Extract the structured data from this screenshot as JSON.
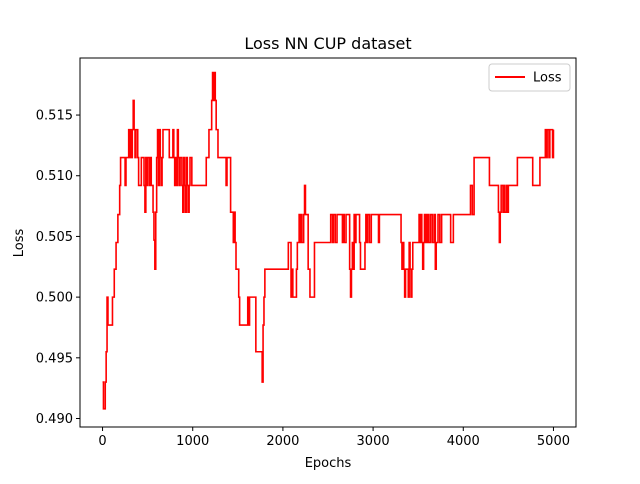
{
  "chart_data": {
    "type": "line",
    "title": "Loss NN CUP dataset",
    "xlabel": "Epochs",
    "ylabel": "Loss",
    "xlim": [
      -250,
      5250
    ],
    "ylim": [
      0.4893,
      0.5197
    ],
    "xticks": [
      0,
      1000,
      2000,
      3000,
      4000,
      5000
    ],
    "xtick_labels": [
      "0",
      "1000",
      "2000",
      "3000",
      "4000",
      "5000"
    ],
    "yticks": [
      0.49,
      0.495,
      0.5,
      0.505,
      0.51,
      0.515
    ],
    "ytick_labels": [
      "0.490",
      "0.495",
      "0.500",
      "0.505",
      "0.510",
      "0.515"
    ],
    "grid": false,
    "legend_position": "top-right",
    "series": [
      {
        "name": "Loss",
        "color": "#ff0000",
        "style": "step",
        "points": [
          [
            0,
            0.493
          ],
          [
            10,
            0.4908
          ],
          [
            25,
            0.4908
          ],
          [
            30,
            0.493
          ],
          [
            40,
            0.4955
          ],
          [
            50,
            0.5
          ],
          [
            60,
            0.4977
          ],
          [
            90,
            0.4977
          ],
          [
            110,
            0.5
          ],
          [
            130,
            0.5023
          ],
          [
            150,
            0.5045
          ],
          [
            170,
            0.5068
          ],
          [
            190,
            0.5092
          ],
          [
            200,
            0.5115
          ],
          [
            240,
            0.5115
          ],
          [
            250,
            0.5092
          ],
          [
            260,
            0.5115
          ],
          [
            280,
            0.5115
          ],
          [
            290,
            0.5138
          ],
          [
            300,
            0.5115
          ],
          [
            310,
            0.5138
          ],
          [
            320,
            0.5115
          ],
          [
            330,
            0.5138
          ],
          [
            340,
            0.5162
          ],
          [
            350,
            0.5138
          ],
          [
            360,
            0.5115
          ],
          [
            370,
            0.5138
          ],
          [
            390,
            0.5115
          ],
          [
            400,
            0.5092
          ],
          [
            420,
            0.5092
          ],
          [
            430,
            0.5115
          ],
          [
            450,
            0.5115
          ],
          [
            460,
            0.5092
          ],
          [
            470,
            0.507
          ],
          [
            480,
            0.5115
          ],
          [
            490,
            0.5092
          ],
          [
            500,
            0.5115
          ],
          [
            520,
            0.5092
          ],
          [
            530,
            0.5115
          ],
          [
            540,
            0.5092
          ],
          [
            560,
            0.507
          ],
          [
            570,
            0.5047
          ],
          [
            580,
            0.5023
          ],
          [
            590,
            0.507
          ],
          [
            600,
            0.5115
          ],
          [
            610,
            0.5138
          ],
          [
            620,
            0.5092
          ],
          [
            630,
            0.5138
          ],
          [
            640,
            0.5115
          ],
          [
            650,
            0.5092
          ],
          [
            660,
            0.5115
          ],
          [
            670,
            0.5138
          ],
          [
            720,
            0.5138
          ],
          [
            740,
            0.5115
          ],
          [
            760,
            0.5115
          ],
          [
            780,
            0.5138
          ],
          [
            790,
            0.5115
          ],
          [
            800,
            0.5092
          ],
          [
            810,
            0.5115
          ],
          [
            820,
            0.5092
          ],
          [
            830,
            0.5138
          ],
          [
            840,
            0.5115
          ],
          [
            850,
            0.5092
          ],
          [
            860,
            0.5115
          ],
          [
            880,
            0.5092
          ],
          [
            890,
            0.507
          ],
          [
            900,
            0.5115
          ],
          [
            910,
            0.5092
          ],
          [
            920,
            0.507
          ],
          [
            930,
            0.5115
          ],
          [
            940,
            0.5092
          ],
          [
            950,
            0.507
          ],
          [
            960,
            0.5092
          ],
          [
            970,
            0.5115
          ],
          [
            990,
            0.5092
          ],
          [
            1000,
            0.5092
          ],
          [
            1100,
            0.5092
          ],
          [
            1150,
            0.5115
          ],
          [
            1170,
            0.5115
          ],
          [
            1180,
            0.5138
          ],
          [
            1200,
            0.5138
          ],
          [
            1210,
            0.5162
          ],
          [
            1220,
            0.5185
          ],
          [
            1230,
            0.5162
          ],
          [
            1240,
            0.5185
          ],
          [
            1250,
            0.5162
          ],
          [
            1260,
            0.5138
          ],
          [
            1280,
            0.5115
          ],
          [
            1300,
            0.5115
          ],
          [
            1350,
            0.5115
          ],
          [
            1370,
            0.5092
          ],
          [
            1380,
            0.5115
          ],
          [
            1410,
            0.5115
          ],
          [
            1420,
            0.507
          ],
          [
            1440,
            0.507
          ],
          [
            1450,
            0.5045
          ],
          [
            1460,
            0.507
          ],
          [
            1470,
            0.5045
          ],
          [
            1480,
            0.5023
          ],
          [
            1500,
            0.5023
          ],
          [
            1510,
            0.5
          ],
          [
            1520,
            0.4977
          ],
          [
            1550,
            0.4977
          ],
          [
            1600,
            0.4977
          ],
          [
            1610,
            0.5
          ],
          [
            1620,
            0.4977
          ],
          [
            1630,
            0.5
          ],
          [
            1690,
            0.5
          ],
          [
            1700,
            0.4955
          ],
          [
            1760,
            0.4955
          ],
          [
            1770,
            0.493
          ],
          [
            1780,
            0.4977
          ],
          [
            1790,
            0.5
          ],
          [
            1800,
            0.5023
          ],
          [
            1900,
            0.5023
          ],
          [
            2000,
            0.5023
          ],
          [
            2050,
            0.5023
          ],
          [
            2060,
            0.5045
          ],
          [
            2080,
            0.5045
          ],
          [
            2090,
            0.5
          ],
          [
            2100,
            0.5023
          ],
          [
            2110,
            0.5
          ],
          [
            2150,
            0.5023
          ],
          [
            2160,
            0.5045
          ],
          [
            2180,
            0.5068
          ],
          [
            2190,
            0.5045
          ],
          [
            2200,
            0.5068
          ],
          [
            2210,
            0.5045
          ],
          [
            2230,
            0.5068
          ],
          [
            2240,
            0.5092
          ],
          [
            2250,
            0.5068
          ],
          [
            2280,
            0.5023
          ],
          [
            2300,
            0.5
          ],
          [
            2340,
            0.5
          ],
          [
            2350,
            0.5045
          ],
          [
            2400,
            0.5045
          ],
          [
            2500,
            0.5045
          ],
          [
            2520,
            0.5045
          ],
          [
            2530,
            0.5068
          ],
          [
            2550,
            0.5045
          ],
          [
            2560,
            0.5068
          ],
          [
            2580,
            0.5045
          ],
          [
            2600,
            0.5068
          ],
          [
            2650,
            0.5068
          ],
          [
            2660,
            0.5045
          ],
          [
            2670,
            0.5068
          ],
          [
            2680,
            0.5045
          ],
          [
            2700,
            0.5068
          ],
          [
            2730,
            0.5068
          ],
          [
            2740,
            0.5023
          ],
          [
            2750,
            0.5
          ],
          [
            2760,
            0.5023
          ],
          [
            2770,
            0.5045
          ],
          [
            2780,
            0.5023
          ],
          [
            2790,
            0.5068
          ],
          [
            2800,
            0.5045
          ],
          [
            2810,
            0.5068
          ],
          [
            2830,
            0.5068
          ],
          [
            2850,
            0.5045
          ],
          [
            2860,
            0.5023
          ],
          [
            2900,
            0.5023
          ],
          [
            2910,
            0.5045
          ],
          [
            2920,
            0.5068
          ],
          [
            2930,
            0.5045
          ],
          [
            2940,
            0.5068
          ],
          [
            2960,
            0.5045
          ],
          [
            2980,
            0.5068
          ],
          [
            3000,
            0.5068
          ],
          [
            3050,
            0.5068
          ],
          [
            3060,
            0.5045
          ],
          [
            3070,
            0.5068
          ],
          [
            3100,
            0.5068
          ],
          [
            3300,
            0.5068
          ],
          [
            3310,
            0.5045
          ],
          [
            3320,
            0.5023
          ],
          [
            3330,
            0.5045
          ],
          [
            3340,
            0.5023
          ],
          [
            3350,
            0.5
          ],
          [
            3360,
            0.5023
          ],
          [
            3380,
            0.5023
          ],
          [
            3390,
            0.5
          ],
          [
            3400,
            0.5045
          ],
          [
            3410,
            0.5023
          ],
          [
            3420,
            0.5
          ],
          [
            3430,
            0.5023
          ],
          [
            3440,
            0.5045
          ],
          [
            3460,
            0.5045
          ],
          [
            3480,
            0.5045
          ],
          [
            3500,
            0.5045
          ],
          [
            3510,
            0.5068
          ],
          [
            3520,
            0.5045
          ],
          [
            3530,
            0.5068
          ],
          [
            3540,
            0.5045
          ],
          [
            3550,
            0.5023
          ],
          [
            3560,
            0.5045
          ],
          [
            3570,
            0.5068
          ],
          [
            3580,
            0.5045
          ],
          [
            3590,
            0.5068
          ],
          [
            3600,
            0.5045
          ],
          [
            3610,
            0.5068
          ],
          [
            3620,
            0.5045
          ],
          [
            3640,
            0.5068
          ],
          [
            3660,
            0.5045
          ],
          [
            3680,
            0.5068
          ],
          [
            3690,
            0.5023
          ],
          [
            3700,
            0.5045
          ],
          [
            3720,
            0.5068
          ],
          [
            3740,
            0.5045
          ],
          [
            3760,
            0.5068
          ],
          [
            3800,
            0.5068
          ],
          [
            3850,
            0.5068
          ],
          [
            3860,
            0.5045
          ],
          [
            3880,
            0.5045
          ],
          [
            3890,
            0.5068
          ],
          [
            3900,
            0.5068
          ],
          [
            4000,
            0.5068
          ],
          [
            4050,
            0.5068
          ],
          [
            4080,
            0.5092
          ],
          [
            4100,
            0.5068
          ],
          [
            4120,
            0.5115
          ],
          [
            4200,
            0.5115
          ],
          [
            4280,
            0.5115
          ],
          [
            4290,
            0.5092
          ],
          [
            4300,
            0.5092
          ],
          [
            4380,
            0.5092
          ],
          [
            4390,
            0.507
          ],
          [
            4400,
            0.5045
          ],
          [
            4410,
            0.507
          ],
          [
            4420,
            0.5092
          ],
          [
            4440,
            0.507
          ],
          [
            4450,
            0.5092
          ],
          [
            4460,
            0.507
          ],
          [
            4480,
            0.5092
          ],
          [
            4490,
            0.507
          ],
          [
            4500,
            0.5092
          ],
          [
            4550,
            0.5092
          ],
          [
            4600,
            0.5115
          ],
          [
            4700,
            0.5115
          ],
          [
            4760,
            0.5115
          ],
          [
            4770,
            0.5092
          ],
          [
            4800,
            0.5092
          ],
          [
            4840,
            0.5092
          ],
          [
            4850,
            0.5115
          ],
          [
            4900,
            0.5115
          ],
          [
            4910,
            0.5138
          ],
          [
            4920,
            0.5115
          ],
          [
            4930,
            0.5138
          ],
          [
            4950,
            0.5115
          ],
          [
            4960,
            0.5138
          ],
          [
            4980,
            0.5138
          ],
          [
            4990,
            0.5115
          ],
          [
            5000,
            0.5138
          ]
        ]
      }
    ]
  }
}
